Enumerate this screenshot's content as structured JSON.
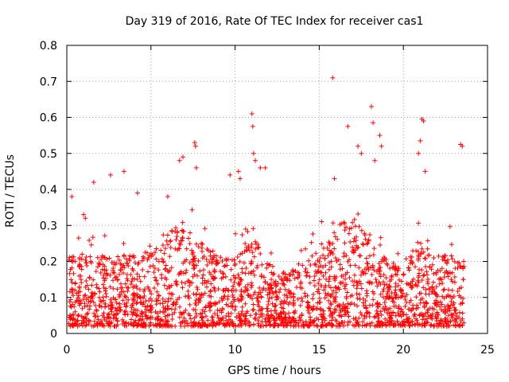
{
  "chart_data": {
    "type": "scatter",
    "title": "Day 319 of 2016, Rate Of TEC Index for receiver cas1",
    "xlabel": "GPS time / hours",
    "ylabel": "ROTI / TECUs",
    "xlim": [
      0,
      25
    ],
    "ylim": [
      0,
      0.8
    ],
    "x_ticks": [
      "0",
      "5",
      "10",
      "15",
      "20",
      "25"
    ],
    "y_ticks": [
      "0",
      "0.1",
      "0.2",
      "0.3",
      "0.4",
      "0.5",
      "0.6",
      "0.7",
      "0.8"
    ],
    "x_tick_values": [
      0,
      5,
      10,
      15,
      20,
      25
    ],
    "y_tick_values": [
      0,
      0.1,
      0.2,
      0.3,
      0.4,
      0.5,
      0.6,
      0.7,
      0.8
    ],
    "grid": true,
    "marker": "+",
    "marker_color": "#ff0000",
    "series": [
      {
        "name": "cas1",
        "sampling": "dense 30 s ROTI samples, roughly 0.02-0.35 TECU baseline from 0.1 h to 23.6 h",
        "points": [
          [
            0.3,
            0.38
          ],
          [
            1.0,
            0.33
          ],
          [
            1.1,
            0.32
          ],
          [
            1.6,
            0.42
          ],
          [
            2.6,
            0.44
          ],
          [
            3.4,
            0.45
          ],
          [
            4.2,
            0.39
          ],
          [
            6.0,
            0.38
          ],
          [
            6.7,
            0.48
          ],
          [
            6.9,
            0.49
          ],
          [
            7.6,
            0.53
          ],
          [
            7.65,
            0.52
          ],
          [
            7.7,
            0.46
          ],
          [
            9.7,
            0.44
          ],
          [
            10.2,
            0.45
          ],
          [
            10.3,
            0.43
          ],
          [
            11.0,
            0.61
          ],
          [
            11.05,
            0.575
          ],
          [
            11.1,
            0.5
          ],
          [
            11.2,
            0.48
          ],
          [
            11.5,
            0.46
          ],
          [
            11.8,
            0.46
          ],
          [
            15.8,
            0.71
          ],
          [
            15.9,
            0.43
          ],
          [
            16.7,
            0.575
          ],
          [
            17.3,
            0.52
          ],
          [
            17.5,
            0.5
          ],
          [
            18.1,
            0.63
          ],
          [
            18.2,
            0.585
          ],
          [
            18.3,
            0.48
          ],
          [
            18.6,
            0.55
          ],
          [
            18.7,
            0.52
          ],
          [
            20.9,
            0.5
          ],
          [
            21.0,
            0.535
          ],
          [
            21.1,
            0.595
          ],
          [
            21.2,
            0.59
          ],
          [
            21.3,
            0.45
          ],
          [
            23.4,
            0.525
          ],
          [
            23.5,
            0.52
          ]
        ]
      }
    ]
  }
}
